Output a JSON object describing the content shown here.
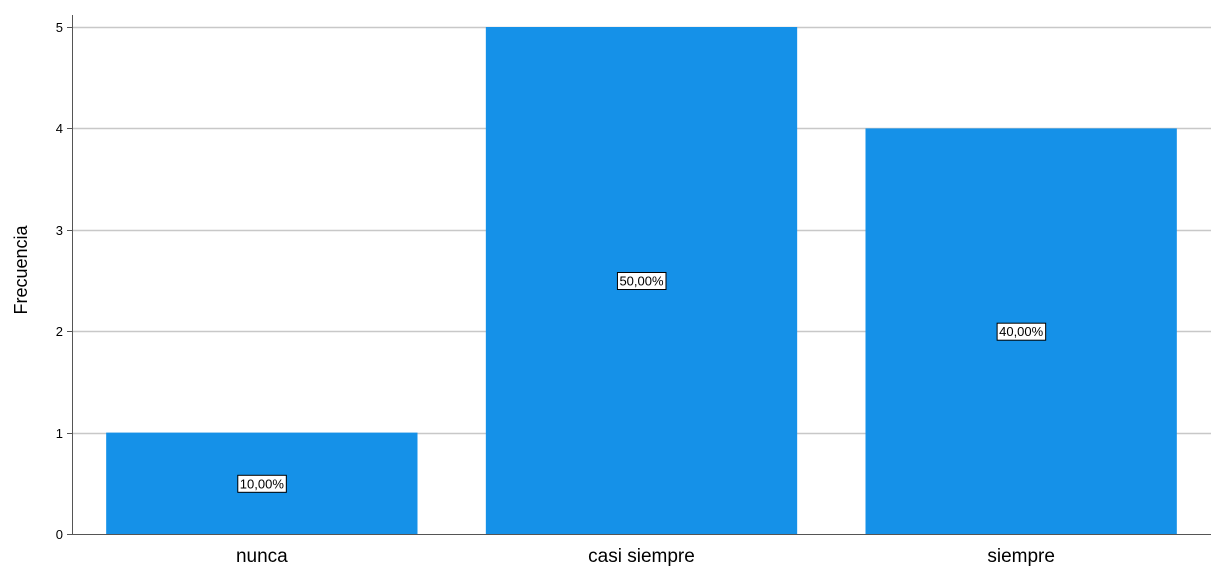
{
  "chart_data": {
    "type": "bar",
    "categories": [
      "nunca",
      "casi siempre",
      "siempre"
    ],
    "values": [
      1,
      5,
      4
    ],
    "data_labels": [
      "10,00%",
      "50,00%",
      "40,00%"
    ],
    "title": "",
    "xlabel": "",
    "ylabel": "Frecuencia",
    "ylim": [
      0,
      5
    ],
    "yticks": [
      "0",
      "1",
      "2",
      "3",
      "4",
      "5"
    ],
    "grid": true,
    "bar_color": "#1591E8",
    "grid_color": "#C8C8C8",
    "axis_color": "#555555"
  }
}
